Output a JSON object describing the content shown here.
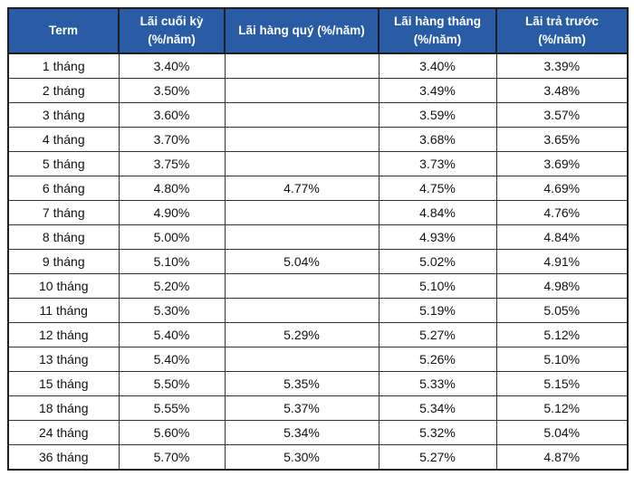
{
  "colors": {
    "header_bg": "#2A5CA5",
    "header_text": "#FFFFFF",
    "border_dark": "#1E1E1E",
    "border_inner": "#333333",
    "cell_text": "#111111",
    "page_bg": "#FFFFFF"
  },
  "chart_data": {
    "type": "table",
    "columns": [
      {
        "id": "term",
        "label": "Term"
      },
      {
        "id": "lai_cuoi_ky",
        "label": "Lãi cuối kỳ\n(%/năm)"
      },
      {
        "id": "lai_hang_quy",
        "label": "Lãi hàng quý (%/năm)"
      },
      {
        "id": "lai_hang_thang",
        "label": "Lãi hàng tháng\n(%/năm)"
      },
      {
        "id": "lai_tra_truoc",
        "label": "Lãi trả trước\n(%/năm)"
      }
    ],
    "rows": [
      [
        "1 tháng",
        "3.40%",
        "",
        "3.40%",
        "3.39%"
      ],
      [
        "2 tháng",
        "3.50%",
        "",
        "3.49%",
        "3.48%"
      ],
      [
        "3 tháng",
        "3.60%",
        "",
        "3.59%",
        "3.57%"
      ],
      [
        "4 tháng",
        "3.70%",
        "",
        "3.68%",
        "3.65%"
      ],
      [
        "5 tháng",
        "3.75%",
        "",
        "3.73%",
        "3.69%"
      ],
      [
        "6 tháng",
        "4.80%",
        "4.77%",
        "4.75%",
        "4.69%"
      ],
      [
        "7 tháng",
        "4.90%",
        "",
        "4.84%",
        "4.76%"
      ],
      [
        "8 tháng",
        "5.00%",
        "",
        "4.93%",
        "4.84%"
      ],
      [
        "9 tháng",
        "5.10%",
        "5.04%",
        "5.02%",
        "4.91%"
      ],
      [
        "10 tháng",
        "5.20%",
        "",
        "5.10%",
        "4.98%"
      ],
      [
        "11 tháng",
        "5.30%",
        "",
        "5.19%",
        "5.05%"
      ],
      [
        "12 tháng",
        "5.40%",
        "5.29%",
        "5.27%",
        "5.12%"
      ],
      [
        "13 tháng",
        "5.40%",
        "",
        "5.26%",
        "5.10%"
      ],
      [
        "15 tháng",
        "5.50%",
        "5.35%",
        "5.33%",
        "5.15%"
      ],
      [
        "18 tháng",
        "5.55%",
        "5.37%",
        "5.34%",
        "5.12%"
      ],
      [
        "24 tháng",
        "5.60%",
        "5.34%",
        "5.32%",
        "5.04%"
      ],
      [
        "36 tháng",
        "5.70%",
        "5.30%",
        "5.27%",
        "4.87%"
      ]
    ]
  }
}
